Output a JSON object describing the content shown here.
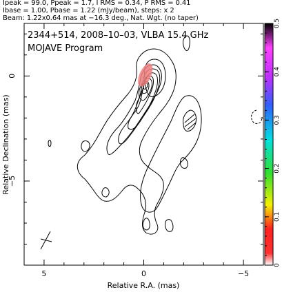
{
  "header": {
    "line1": "Ipeak = 99.0, Ppeak = 1.7, I RMS = 0.34, P RMS = 0.41",
    "line2": "Ibase = 1.00, Pbase = 1.22 (mJy/beam), steps: x 2",
    "line3": "Beam: 1.22x0.64 mas at −16.3 deg., Nat. Wgt. (no taper)"
  },
  "plot": {
    "source_label": "2344+514, 2008–10–03, VLBA 15.4 GHz",
    "program_label": "MOJAVE Program"
  },
  "chart_data": {
    "type": "contour",
    "title": "2344+514, 2008–10–03, VLBA 15.4 GHz",
    "subtitle": "MOJAVE Program",
    "xlabel": "Relative R.A. (mas)",
    "ylabel": "Relative Declination (mas)",
    "xlim": [
      6.0,
      -6.0
    ],
    "ylim": [
      -9.0,
      2.5
    ],
    "x_ticks": [
      5,
      0,
      -5
    ],
    "x_tick_labels": [
      "5",
      "0",
      "−5"
    ],
    "y_ticks": [
      0,
      -5
    ],
    "y_tick_labels": [
      "0",
      "−5"
    ],
    "Ipeak_mJy_per_beam": 99.0,
    "Ppeak_mJy_per_beam": 1.7,
    "I_RMS": 0.34,
    "P_RMS": 0.41,
    "Ibase_mJy_per_beam": 1.0,
    "Pbase_mJy_per_beam": 1.22,
    "contour_step_factor": 2,
    "beam": {
      "major_mas": 1.22,
      "minor_mas": 0.64,
      "pa_deg": -16.3
    },
    "core_position_mas": [
      0.0,
      0.0
    ],
    "colorbar": {
      "min": 0,
      "max": 0.5,
      "ticks": [
        0,
        0.1,
        0.2,
        0.3,
        0.4,
        0.5
      ],
      "tick_labels": [
        "0",
        "0.1",
        "0.2",
        "0.3",
        "0.4",
        "0.5"
      ]
    },
    "colors": {
      "contour": "#000000",
      "polarization_fill": "#f08080"
    }
  }
}
